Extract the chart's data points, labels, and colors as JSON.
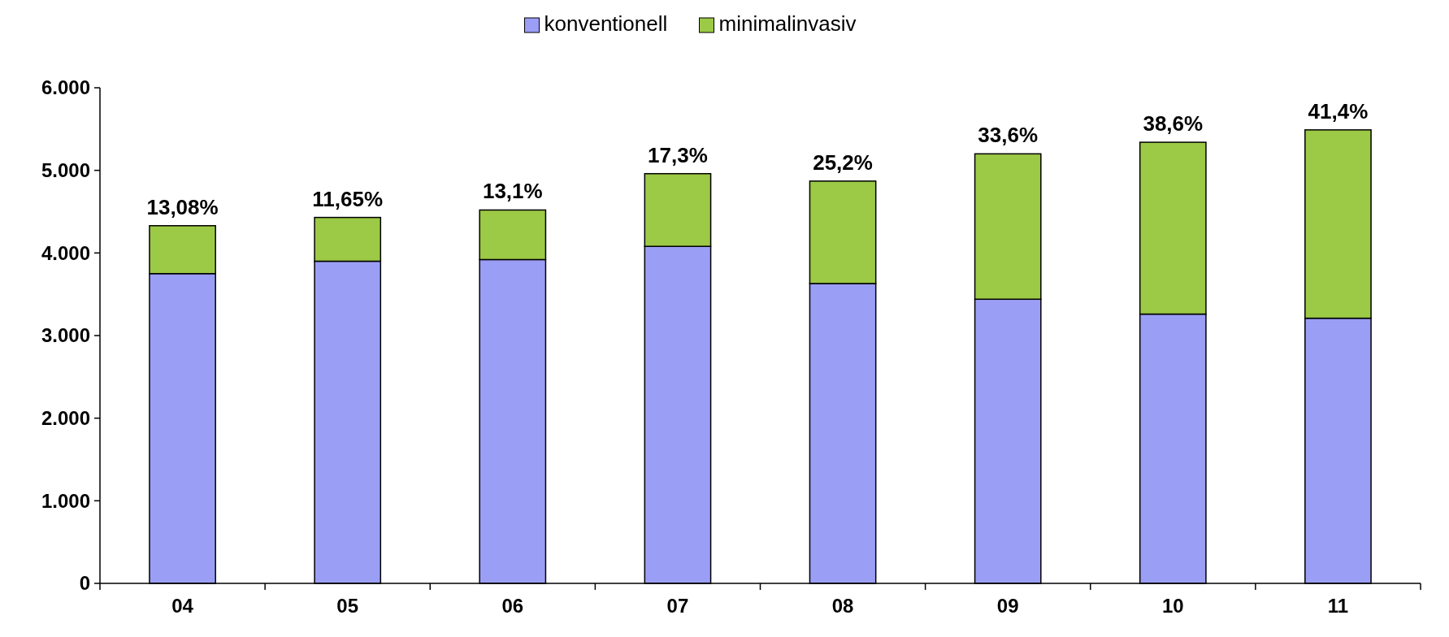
{
  "chart_data": {
    "type": "bar",
    "stacked": true,
    "categories": [
      "04",
      "05",
      "06",
      "07",
      "08",
      "09",
      "10",
      "11"
    ],
    "series": [
      {
        "name": "konventionell",
        "color": "#9b9ef5",
        "values": [
          3750,
          3900,
          3920,
          4080,
          3630,
          3440,
          3260,
          3210
        ]
      },
      {
        "name": "minimalinvasiv",
        "color": "#9cc946",
        "values": [
          580,
          530,
          600,
          880,
          1240,
          1760,
          2080,
          2280
        ]
      }
    ],
    "annotations": [
      {
        "text": "13,08%",
        "x": "04",
        "y": 4330
      },
      {
        "text": "11,65%",
        "x": "05",
        "y": 4430
      },
      {
        "text": "13,1%",
        "x": "06",
        "y": 4520
      },
      {
        "text": "17,3%",
        "x": "07",
        "y": 4960
      },
      {
        "text": "25,2%",
        "x": "08",
        "y": 4870
      },
      {
        "text": "33,6%",
        "x": "09",
        "y": 5200
      },
      {
        "text": "38,6%",
        "x": "10",
        "y": 5340
      },
      {
        "text": "41,4%",
        "x": "11",
        "y": 5490
      }
    ],
    "ylim": [
      0,
      6000
    ],
    "yticks": [
      {
        "value": 0,
        "label": "0"
      },
      {
        "value": 1000,
        "label": "1.000"
      },
      {
        "value": 2000,
        "label": "2.000"
      },
      {
        "value": 3000,
        "label": "3.000"
      },
      {
        "value": 4000,
        "label": "4.000"
      },
      {
        "value": 5000,
        "label": "5.000"
      },
      {
        "value": 6000,
        "label": "6.000"
      }
    ],
    "legend": "top",
    "grid": false
  }
}
